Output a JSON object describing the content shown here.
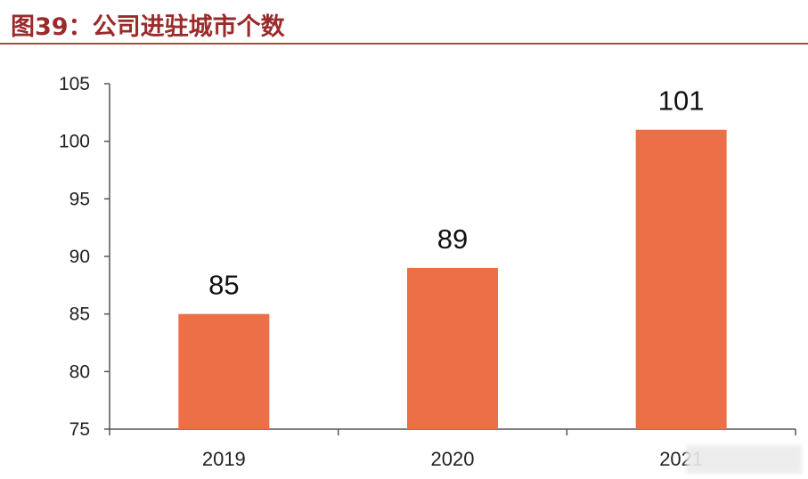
{
  "title": "图39：公司进驻城市个数",
  "colors": {
    "title": "#9b2a2a",
    "rule": "#b5453c",
    "bar": "#ec6f48",
    "axis": "#555555"
  },
  "chart_data": {
    "type": "bar",
    "categories": [
      "2019",
      "2020",
      "2021"
    ],
    "values": [
      85,
      89,
      101
    ],
    "data_labels": [
      "85",
      "89",
      "101"
    ],
    "ylim": [
      75,
      105
    ],
    "yticks": [
      75,
      80,
      85,
      90,
      95,
      100,
      105
    ],
    "grid": false,
    "legend": "none"
  }
}
